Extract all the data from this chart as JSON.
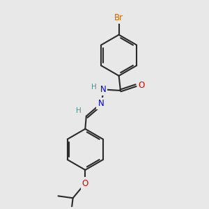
{
  "bg_color": "#e8e8e8",
  "bond_color": "#2a2a2a",
  "atom_colors": {
    "Br": "#cc6600",
    "O": "#dd0000",
    "N": "#0000cc",
    "H": "#4a9090",
    "C": "#2a2a2a"
  },
  "font_size_atom": 8.5,
  "font_size_h": 7.5,
  "font_size_br": 8.5
}
